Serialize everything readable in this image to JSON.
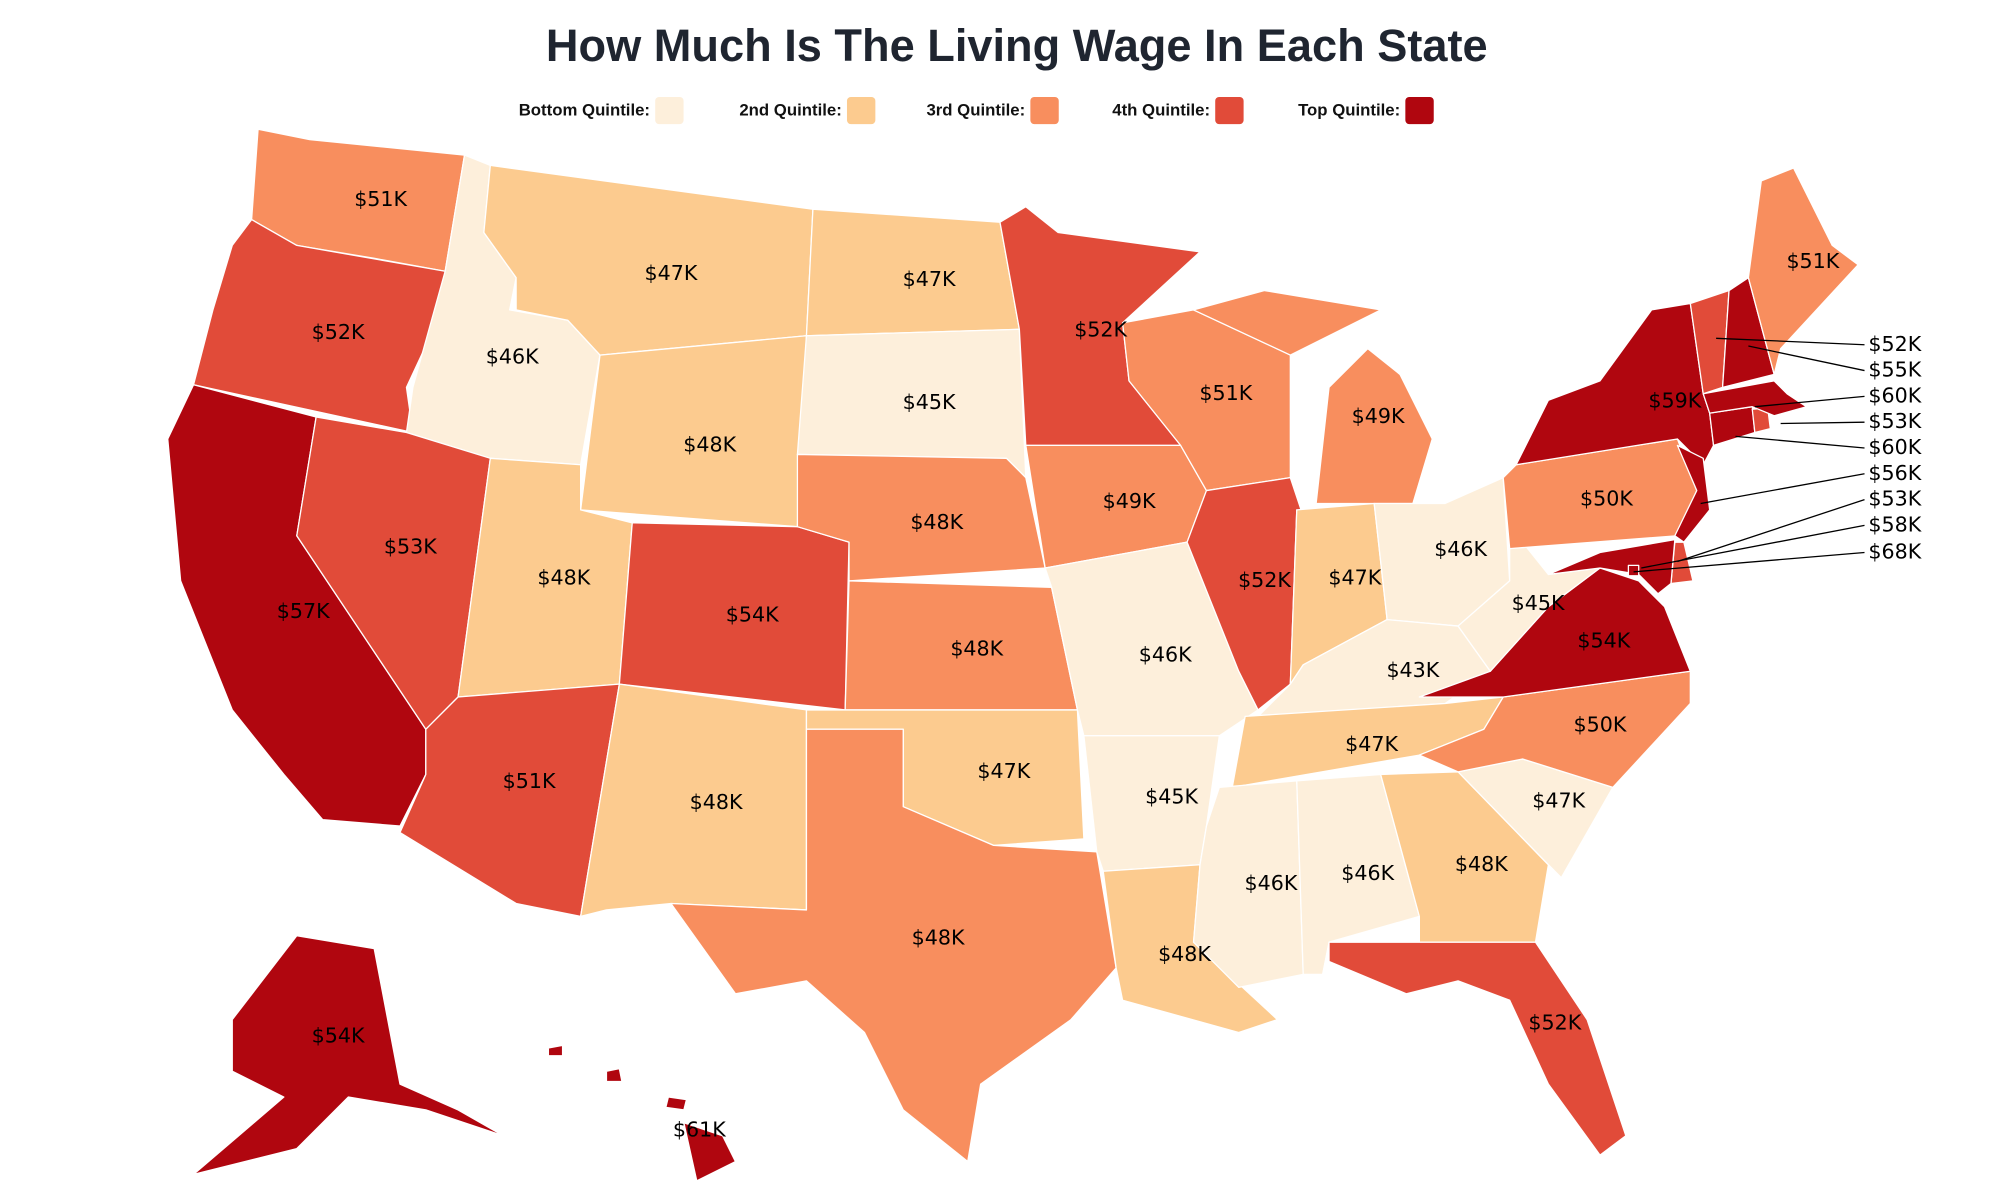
{
  "title": "How Much Is The Living Wage In Each State",
  "legend": [
    {
      "label": "Bottom Quintile:",
      "color": "#fdefdb"
    },
    {
      "label": "2nd Quintile:",
      "color": "#fccb8f"
    },
    {
      "label": "3rd Quintile:",
      "color": "#f88e5e"
    },
    {
      "label": "4th Quintile:",
      "color": "#e14b39"
    },
    {
      "label": "Top Quintile:",
      "color": "#b0060f"
    }
  ],
  "regions": [
    {
      "value": 51000,
      "value_label": "$51K",
      "color": "#f88e5e"
    },
    {
      "value": 52000,
      "value_label": "$52K",
      "color": "#e14b39"
    },
    {
      "value": 57000,
      "value_label": "$57K",
      "color": "#b0060f"
    },
    {
      "value": 46000,
      "value_label": "$46K",
      "color": "#fdefdb"
    },
    {
      "value": 53000,
      "value_label": "$53K",
      "color": "#e14b39"
    },
    {
      "value": 47000,
      "value_label": "$47K",
      "color": "#fccb8f"
    },
    {
      "value": 48000,
      "value_label": "$48K",
      "color": "#fccb8f"
    },
    {
      "value": 48000,
      "value_label": "$48K",
      "color": "#fccb8f"
    },
    {
      "value": 51000,
      "value_label": "$51K",
      "color": "#e14b39"
    },
    {
      "value": 54000,
      "value_label": "$54K",
      "color": "#e14b39"
    },
    {
      "value": 48000,
      "value_label": "$48K",
      "color": "#fccb8f"
    },
    {
      "value": 47000,
      "value_label": "$47K",
      "color": "#fccb8f"
    },
    {
      "value": 45000,
      "value_label": "$45K",
      "color": "#fdefdb"
    },
    {
      "value": 48000,
      "value_label": "$48K",
      "color": "#f88e5e"
    },
    {
      "value": 48000,
      "value_label": "$48K",
      "color": "#f88e5e"
    },
    {
      "value": 47000,
      "value_label": "$47K",
      "color": "#fccb8f"
    },
    {
      "value": 48000,
      "value_label": "$48K",
      "color": "#f88e5e"
    },
    {
      "value": 52000,
      "value_label": "$52K",
      "color": "#e14b39"
    },
    {
      "value": 49000,
      "value_label": "$49K",
      "color": "#f88e5e"
    },
    {
      "value": 46000,
      "value_label": "$46K",
      "color": "#fdefdb"
    },
    {
      "value": 45000,
      "value_label": "$45K",
      "color": "#fdefdb"
    },
    {
      "value": 48000,
      "value_label": "$48K",
      "color": "#fccb8f"
    },
    {
      "value": 51000,
      "value_label": "$51K",
      "color": "#f88e5e"
    },
    {
      "value": 52000,
      "value_label": "$52K",
      "color": "#e14b39"
    },
    {
      "value": 49000,
      "value_label": "$49K",
      "color": "#f88e5e"
    },
    {
      "value": 47000,
      "value_label": "$47K",
      "color": "#fccb8f"
    },
    {
      "value": 46000,
      "value_label": "$46K",
      "color": "#fdefdb"
    },
    {
      "value": 43000,
      "value_label": "$43K",
      "color": "#fdefdb"
    },
    {
      "value": 47000,
      "value_label": "$47K",
      "color": "#fccb8f"
    },
    {
      "value": 46000,
      "value_label": "$46K",
      "color": "#fdefdb"
    },
    {
      "value": 46000,
      "value_label": "$46K",
      "color": "#fdefdb"
    },
    {
      "value": 48000,
      "value_label": "$48K",
      "color": "#fccb8f"
    },
    {
      "value": 52000,
      "value_label": "$52K",
      "color": "#e14b39"
    },
    {
      "value": 47000,
      "value_label": "$47K",
      "color": "#fdefdb"
    },
    {
      "value": 50000,
      "value_label": "$50K",
      "color": "#f88e5e"
    },
    {
      "value": 54000,
      "value_label": "$54K",
      "color": "#b0060f"
    },
    {
      "value": 45000,
      "value_label": "$45K",
      "color": "#fdefdb"
    },
    {
      "value": 50000,
      "value_label": "$50K",
      "color": "#f88e5e"
    },
    {
      "value": 59000,
      "value_label": "$59K",
      "color": "#b0060f"
    },
    {
      "value": 56000,
      "value_label": "$56K",
      "color": "#b0060f"
    },
    {
      "value": 53000,
      "value_label": "$53K",
      "color": "#e14b39"
    },
    {
      "value": 58000,
      "value_label": "$58K",
      "color": "#b0060f"
    },
    {
      "value": 68000,
      "value_label": "$68K",
      "color": "#b0060f"
    },
    {
      "value": 60000,
      "value_label": "$60K",
      "color": "#b0060f"
    },
    {
      "value": 53000,
      "value_label": "$53K",
      "color": "#e14b39"
    },
    {
      "value": 60000,
      "value_label": "$60K",
      "color": "#b0060f"
    },
    {
      "value": 52000,
      "value_label": "$52K",
      "color": "#e14b39"
    },
    {
      "value": 55000,
      "value_label": "$55K",
      "color": "#b0060f"
    },
    {
      "value": 51000,
      "value_label": "$51K",
      "color": "#f88e5e"
    },
    {
      "value": 54000,
      "value_label": "$54K",
      "color": "#b0060f"
    },
    {
      "value": 61000,
      "value_label": "$61K",
      "color": "#b0060f"
    }
  ]
}
